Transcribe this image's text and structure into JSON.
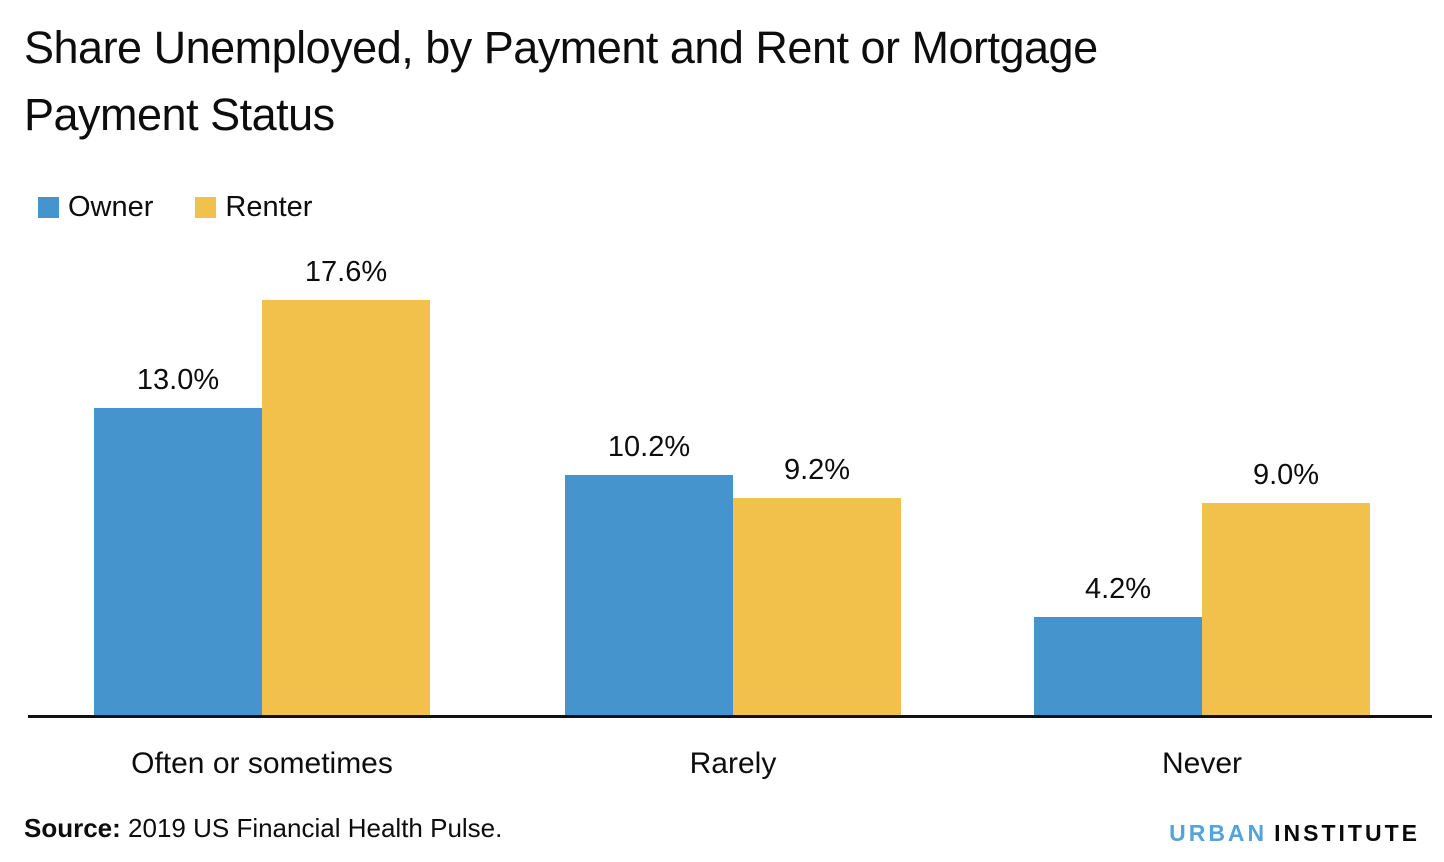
{
  "title": {
    "line1": "Share Unemployed, by Payment and Rent or Mortgage",
    "line2": "Payment Status"
  },
  "chart_data": {
    "type": "bar",
    "title": "Share Unemployed, by Payment and Rent or Mortgage Payment Status",
    "categories": [
      "Often or sometimes",
      "Rarely",
      "Never"
    ],
    "series": [
      {
        "name": "Owner",
        "color": "#4594ce",
        "values": [
          13.0,
          10.2,
          4.2
        ],
        "labels": [
          "13.0%",
          "10.2%",
          "4.2%"
        ]
      },
      {
        "name": "Renter",
        "color": "#f2c14c",
        "values": [
          17.6,
          9.2,
          9.0
        ],
        "labels": [
          "17.6%",
          "9.2%",
          "9.0%"
        ]
      }
    ],
    "value_suffix": "%",
    "xlabel": "",
    "ylabel": "",
    "ylim": [
      0,
      20
    ],
    "grid": false,
    "legend_position": "top-left",
    "data_labels": true
  },
  "legend": {
    "items": [
      {
        "label": "Owner",
        "color": "#4594ce"
      },
      {
        "label": "Renter",
        "color": "#f2c14c"
      }
    ]
  },
  "source": {
    "label": "Source:",
    "text": " 2019 US Financial Health Pulse."
  },
  "logo": {
    "part1": "URBAN",
    "part2": "INSTITUTE",
    "color1": "#55a3d9",
    "color2": "#0a0a0a"
  },
  "colors": {
    "axis": "#111111",
    "background": "#ffffff",
    "text": "#0d0d0d"
  }
}
